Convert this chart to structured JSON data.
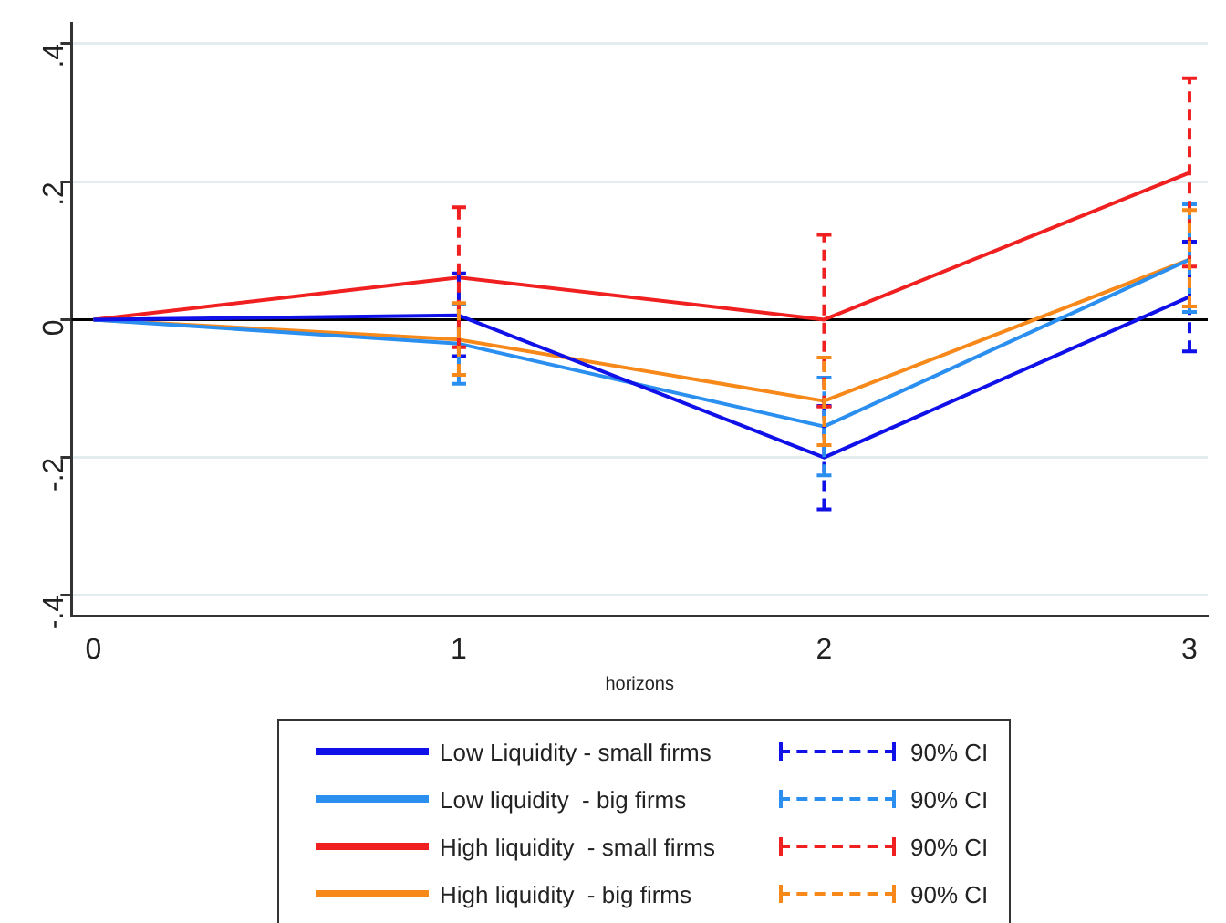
{
  "chart_data": {
    "type": "line",
    "xlabel": "horizons",
    "x": [
      0,
      1,
      2,
      3
    ],
    "series": [
      {
        "name": "Low Liquidity - small firms",
        "color": "#1010e8",
        "values": [
          0,
          0.006,
          -0.2,
          0.033
        ],
        "errors": [
          null,
          [
            -0.053,
            0.067
          ],
          [
            -0.275,
            -0.125
          ],
          [
            -0.046,
            0.113
          ]
        ]
      },
      {
        "name": "Low liquidity  - big firms",
        "color": "#2b8ff0",
        "values": [
          0,
          -0.035,
          -0.155,
          0.087
        ],
        "errors": [
          null,
          [
            -0.093,
            0.022
          ],
          [
            -0.226,
            -0.084
          ],
          [
            0.011,
            0.167
          ]
        ]
      },
      {
        "name": "High liquidity  - small firms",
        "color": "#f02020",
        "values": [
          0,
          0.061,
          0,
          0.213
        ],
        "errors": [
          null,
          [
            -0.04,
            0.163
          ],
          [
            -0.126,
            0.123
          ],
          [
            0.077,
            0.35
          ]
        ]
      },
      {
        "name": "High liquidity  - big firms",
        "color": "#f7881a",
        "values": [
          0,
          -0.029,
          -0.118,
          0.087
        ],
        "errors": [
          null,
          [
            -0.08,
            0.024
          ],
          [
            -0.182,
            -0.055
          ],
          [
            0.019,
            0.159
          ]
        ]
      }
    ],
    "annotations": [
      "90% CI",
      "90% CI",
      "90% CI",
      "90% CI"
    ],
    "xlim": [
      -0.06,
      3.05
    ],
    "xticks": [
      0,
      1,
      2,
      3
    ],
    "ylim": [
      -0.43,
      0.43
    ],
    "yticks": [
      {
        "value": -0.4,
        "label": "-.4"
      },
      {
        "value": -0.2,
        "label": "-.2"
      },
      0,
      {
        "value": 0.2,
        "label": ".2"
      },
      {
        "value": 0.4,
        "label": ".4"
      }
    ],
    "ref_lines": [
      {
        "axis": "y",
        "value": 0,
        "color": "#000000"
      }
    ],
    "grid": "y",
    "legend": "bottom",
    "marker": "none",
    "line_style": "solid"
  }
}
